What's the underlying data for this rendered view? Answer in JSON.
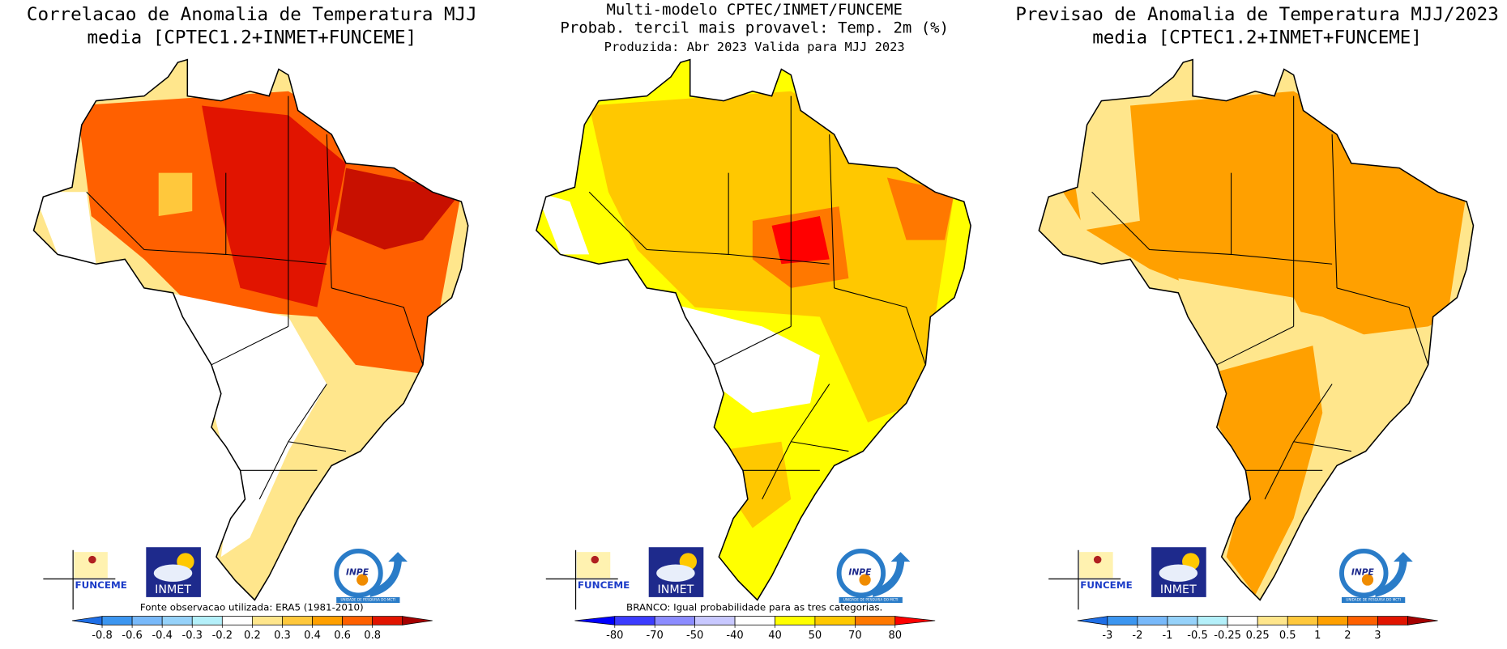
{
  "panels": [
    {
      "title": [
        "Correlacao de Anomalia de Temperatura MJJ",
        "media [CPTEC1.2+INMET+FUNCEME]"
      ],
      "note": "Fonte observacao utilizada: ERA5 (1981-2010)",
      "colorbar": {
        "ticks": [
          -0.8,
          -0.6,
          -0.4,
          -0.3,
          -0.2,
          0.2,
          0.3,
          0.4,
          0.6,
          0.8
        ],
        "colors": [
          "#1e6ee6",
          "#3c96f0",
          "#78b9fa",
          "#96d2fa",
          "#b4f0fa",
          "#ffffff",
          "#ffe68c",
          "#ffc83c",
          "#ffa000",
          "#ff6000",
          "#e11400",
          "#a50000"
        ]
      }
    },
    {
      "title": [
        "Multi-modelo CPTEC/INMET/FUNCEME",
        "Probab. tercil mais provavel: Temp. 2m (%)",
        "Produzida: Abr 2023   Valida para MJJ 2023"
      ],
      "note": "BRANCO: Igual probabilidade para as tres categorias.",
      "colorbar": {
        "ticks": [
          -80,
          -70,
          -50,
          -40,
          40,
          50,
          70,
          80
        ],
        "colors": [
          "#0000ff",
          "#3c3cff",
          "#8c8cff",
          "#c8c8ff",
          "#ffffff",
          "#ffff00",
          "#ffc800",
          "#ff7800",
          "#ff0000"
        ]
      }
    },
    {
      "title": [
        "Previsao de Anomalia de Temperatura MJJ/2023",
        "media [CPTEC1.2+INMET+FUNCEME]"
      ],
      "colorbar": {
        "ticks": [
          -3,
          -2,
          -1,
          -0.5,
          -0.25,
          0.25,
          0.5,
          1,
          2,
          3
        ],
        "colors": [
          "#1e6ee6",
          "#3c96f0",
          "#78b9fa",
          "#96d2fa",
          "#b4f0fa",
          "#ffffff",
          "#ffe68c",
          "#ffc83c",
          "#ffa000",
          "#ff6000",
          "#e11400",
          "#a50000"
        ]
      }
    }
  ],
  "logos": {
    "funceme": "FUNCEME",
    "inmet": "INMET",
    "inpe": "INPE",
    "inpe_sub": "UNIDADE DE PESQUISA DO MCTI"
  }
}
